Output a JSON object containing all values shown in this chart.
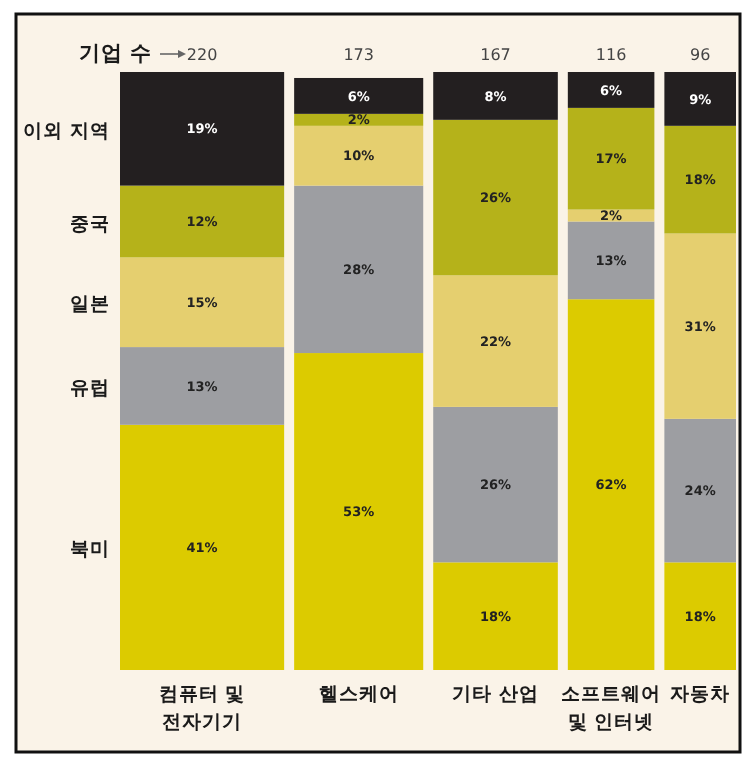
{
  "chart_data": {
    "type": "bar",
    "stacked": true,
    "categories": [
      "컴퓨터 및 전자기기",
      "헬스케어",
      "기타 산업",
      "소프트웨어 및 인터넷",
      "자동차"
    ],
    "series": [
      {
        "name": "북미",
        "color": "#dccb00",
        "values": [
          41,
          53,
          18,
          62,
          18
        ],
        "value_labels": [
          "41%",
          "53%",
          "18%",
          "62%",
          "18%"
        ]
      },
      {
        "name": "유럽",
        "color": "#9d9ea2",
        "values": [
          13,
          28,
          26,
          13,
          24
        ],
        "value_labels": [
          "13%",
          "28%",
          "26%",
          "13%",
          "24%"
        ]
      },
      {
        "name": "일본",
        "color": "#e5cf6f",
        "values": [
          15,
          10,
          22,
          2,
          31
        ],
        "value_labels": [
          "15%",
          "10%",
          "22%",
          "2%",
          "31%"
        ]
      },
      {
        "name": "중국",
        "color": "#b5b21a",
        "values": [
          12,
          2,
          26,
          17,
          18
        ],
        "value_labels": [
          "12%",
          "2%",
          "26%",
          "17%",
          "18%"
        ]
      },
      {
        "name": "이외 지역",
        "color": "#231f20",
        "values": [
          19,
          6,
          8,
          6,
          9
        ],
        "value_labels": [
          "19%",
          "6%",
          "8%",
          "6%",
          "9%"
        ]
      }
    ],
    "annotations": [
      "기업 수",
      "220",
      "173",
      "167",
      "116",
      "96"
    ]
  }
}
